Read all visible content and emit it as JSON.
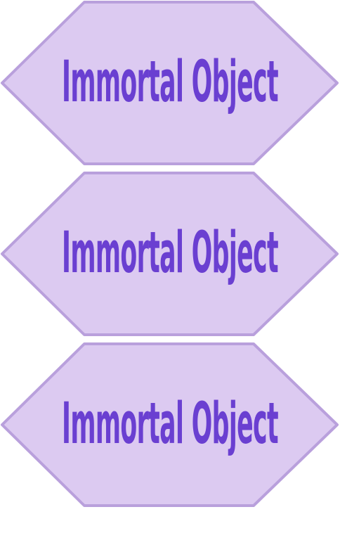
{
  "colors": {
    "fill": "#dccaf1",
    "stroke": "#b9a0dc",
    "text": "#6a3fd1"
  },
  "shapes": [
    {
      "label": "Immortal Object"
    },
    {
      "label": "Immortal Object"
    },
    {
      "label": "Immortal Object"
    }
  ]
}
